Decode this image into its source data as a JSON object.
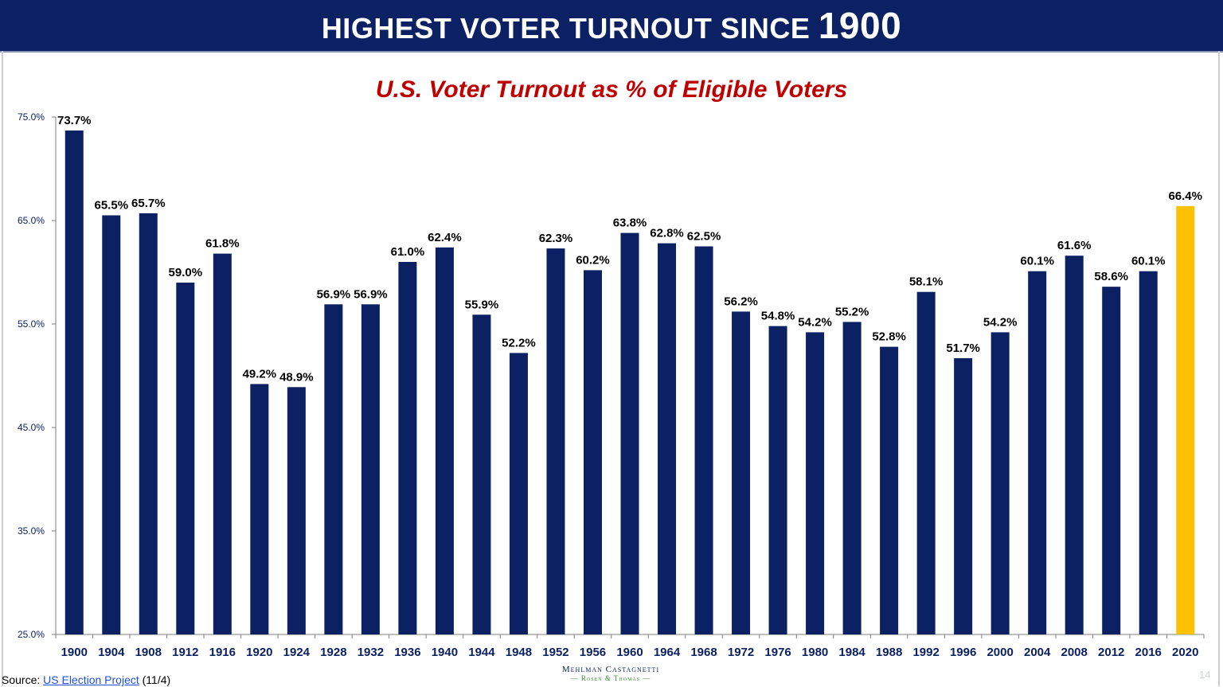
{
  "banner": {
    "title_main": "HIGHEST VOTER TURNOUT SINCE ",
    "title_year": "1900"
  },
  "footer": {
    "source_prefix": "Source: ",
    "source_link": "US Election Project",
    "source_suffix": " (11/4)",
    "logo_line1": "Mehlman Castagnetti",
    "logo_line2": "— Rosen & Thomas —",
    "page_number": "14"
  },
  "chart_data": {
    "type": "bar",
    "title": "U.S. Voter Turnout as % of Eligible Voters",
    "categories": [
      "1900",
      "1904",
      "1908",
      "1912",
      "1916",
      "1920",
      "1924",
      "1928",
      "1932",
      "1936",
      "1940",
      "1944",
      "1948",
      "1952",
      "1956",
      "1960",
      "1964",
      "1968",
      "1972",
      "1976",
      "1980",
      "1984",
      "1988",
      "1992",
      "1996",
      "2000",
      "2004",
      "2008",
      "2012",
      "2016",
      "2020"
    ],
    "values": [
      73.7,
      65.5,
      65.7,
      59.0,
      61.8,
      49.2,
      48.9,
      56.9,
      56.9,
      61.0,
      62.4,
      55.9,
      52.2,
      62.3,
      60.2,
      63.8,
      62.8,
      62.5,
      56.2,
      54.8,
      54.2,
      55.2,
      52.8,
      58.1,
      51.7,
      54.2,
      60.1,
      61.6,
      58.6,
      60.1,
      66.4
    ],
    "value_labels": [
      "73.7%",
      "65.5%",
      "65.7%",
      "59.0%",
      "61.8%",
      "49.2%",
      "48.9%",
      "56.9%",
      "56.9%",
      "61.0%",
      "62.4%",
      "55.9%",
      "52.2%",
      "62.3%",
      "60.2%",
      "63.8%",
      "62.8%",
      "62.5%",
      "56.2%",
      "54.8%",
      "54.2%",
      "55.2%",
      "52.8%",
      "58.1%",
      "51.7%",
      "54.2%",
      "60.1%",
      "61.6%",
      "58.6%",
      "60.1%",
      "66.4%"
    ],
    "ylim": [
      25,
      75
    ],
    "y_ticks": [
      75,
      65,
      55,
      45,
      35,
      25
    ],
    "y_tick_labels": [
      "75.0%",
      "65.0%",
      "55.0%",
      "45.0%",
      "35.0%",
      "25.0%"
    ],
    "xlabel": "",
    "ylabel": "",
    "grid": false,
    "bar_color": "#0c2164",
    "highlight_category": "2020",
    "highlight_color": "#fcc100",
    "title_color": "#c00000",
    "tick_label_color": "#0c2164"
  }
}
